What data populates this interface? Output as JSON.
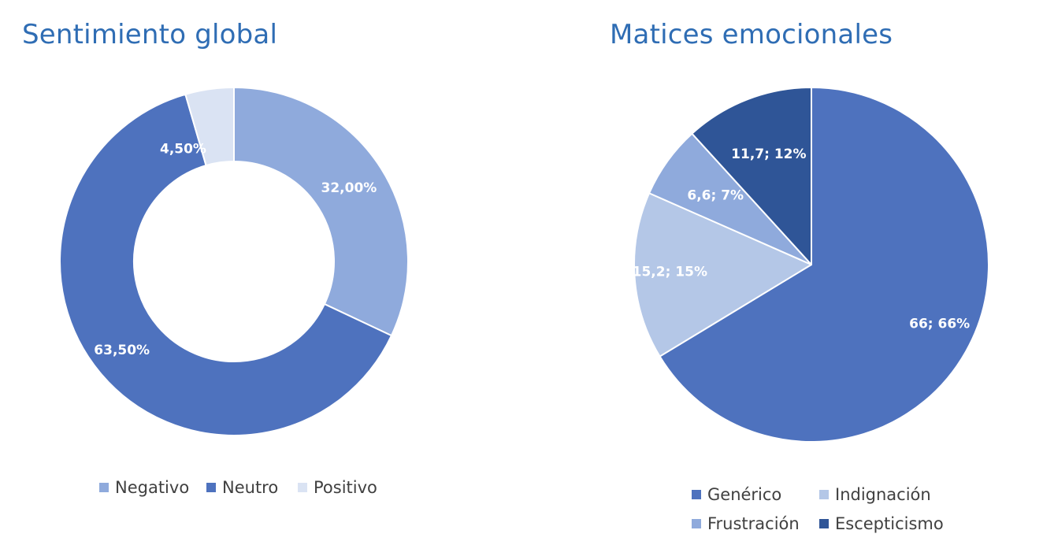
{
  "charts": {
    "left": {
      "title": "Sentimiento global"
    },
    "right": {
      "title": "Matices emocionales"
    }
  },
  "chart_data": [
    {
      "type": "pie",
      "donut": true,
      "title": "Sentimiento global",
      "legend_position": "bottom",
      "slices": [
        {
          "name": "Negativo",
          "value": 32.0,
          "label": "32,00%",
          "color": "#8faadc"
        },
        {
          "name": "Neutro",
          "value": 63.5,
          "label": "63,50%",
          "color": "#4e72be"
        },
        {
          "name": "Positivo",
          "value": 4.5,
          "label": "4,50%",
          "color": "#dae3f3"
        }
      ]
    },
    {
      "type": "pie",
      "donut": false,
      "title": "Matices emocionales",
      "legend_position": "bottom",
      "slices": [
        {
          "name": "Genérico",
          "value": 66,
          "label": "66; 66%",
          "color": "#4e72be"
        },
        {
          "name": "Indignación",
          "value": 15.2,
          "label": "15,2; 15%",
          "color": "#b4c7e7"
        },
        {
          "name": "Frustración",
          "value": 6.6,
          "label": "6,6; 7%",
          "color": "#8faadc"
        },
        {
          "name": "Escepticismo",
          "value": 11.7,
          "label": "11,7; 12%",
          "color": "#2f5597"
        }
      ]
    }
  ],
  "legend": {
    "left": [
      {
        "label": "Negativo",
        "color": "#8faadc"
      },
      {
        "label": "Neutro",
        "color": "#4e72be"
      },
      {
        "label": "Positivo",
        "color": "#dae3f3"
      }
    ],
    "right": [
      {
        "label": "Genérico",
        "color": "#4e72be"
      },
      {
        "label": "Indignación",
        "color": "#b4c7e7"
      },
      {
        "label": "Frustración",
        "color": "#8faadc"
      },
      {
        "label": "Escepticismo",
        "color": "#2f5597"
      }
    ]
  }
}
